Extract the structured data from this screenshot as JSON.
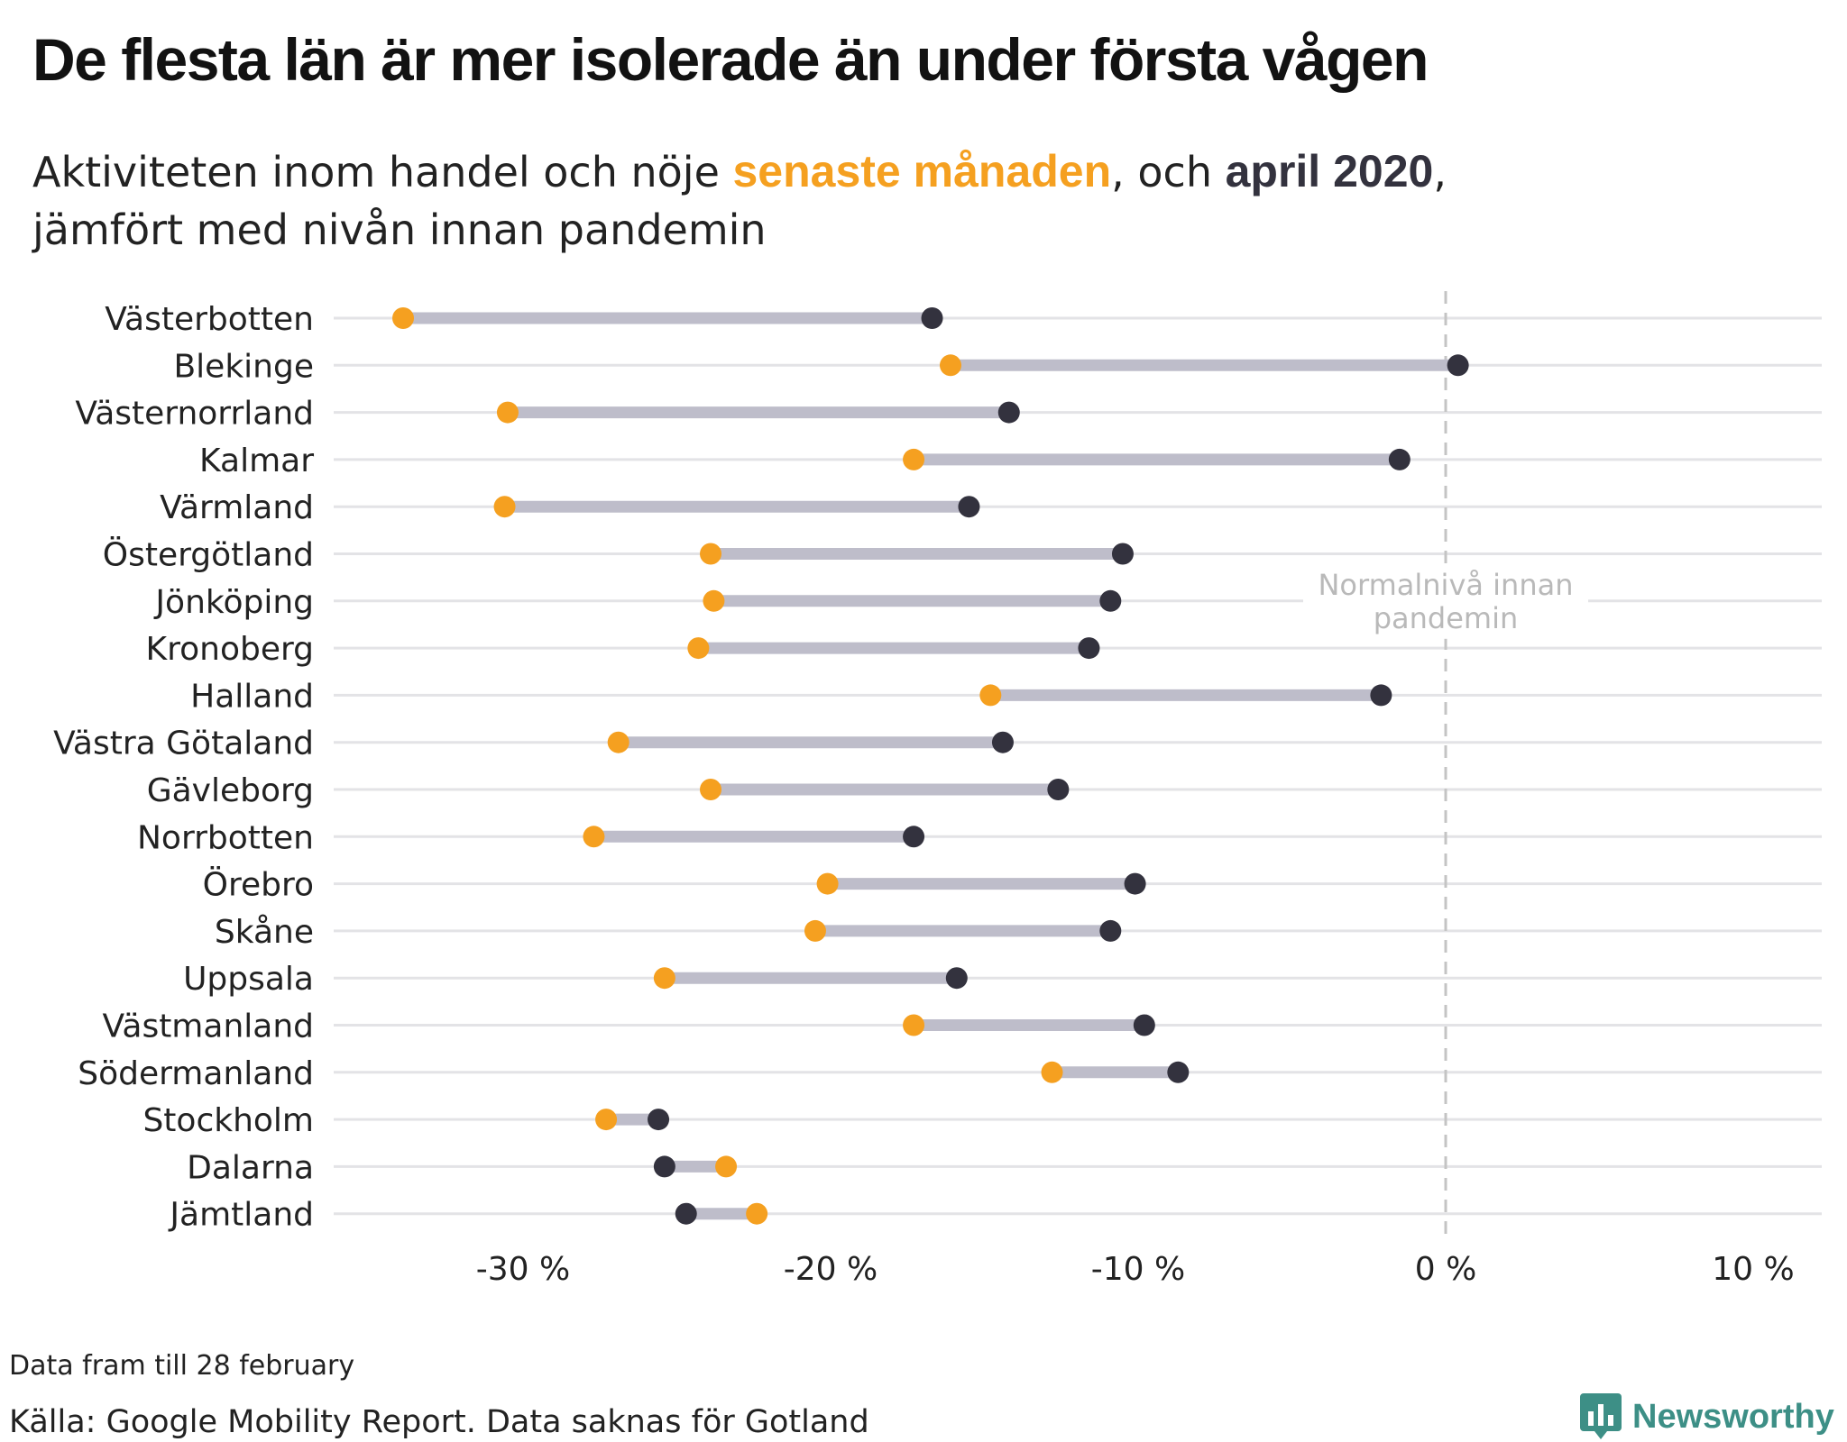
{
  "title": "De flesta län är mer isolerade än under första vågen",
  "subtitle": {
    "part1": "Aktiviteten inom handel och nöje ",
    "highlight_recent": "senaste månaden",
    "part2": ", och ",
    "highlight_april": "april 2020",
    "part3": ",",
    "line2": "jämfört med nivån innan pandemin"
  },
  "chart_data": {
    "type": "dumbbell",
    "xlim": [
      -36,
      12
    ],
    "xticks": [
      {
        "value": -30,
        "label": "-30 %"
      },
      {
        "value": -20,
        "label": "-20 %"
      },
      {
        "value": -10,
        "label": "-10 %"
      },
      {
        "value": 0,
        "label": "0 %"
      },
      {
        "value": 10,
        "label": "10 %"
      }
    ],
    "reference_line": {
      "value": 0,
      "label_line1": "Normalnivå innan",
      "label_line2": "pandemin"
    },
    "grid": true,
    "series": [
      {
        "key": "recent",
        "name": "senaste månaden",
        "color": "#f5a020"
      },
      {
        "key": "april",
        "name": "april 2020",
        "color": "#33323e"
      }
    ],
    "connector_color": "#bebdca",
    "categories": [
      "Västerbotten",
      "Blekinge",
      "Västernorrland",
      "Kalmar",
      "Värmland",
      "Östergötland",
      "Jönköping",
      "Kronoberg",
      "Halland",
      "Västra Götaland",
      "Gävleborg",
      "Norrbotten",
      "Örebro",
      "Skåne",
      "Uppsala",
      "Västmanland",
      "Södermanland",
      "Stockholm",
      "Dalarna",
      "Jämtland"
    ],
    "recent": [
      -33.9,
      -16.1,
      -30.5,
      -17.3,
      -30.6,
      -23.9,
      -23.8,
      -24.3,
      -14.8,
      -26.9,
      -23.9,
      -27.7,
      -20.1,
      -20.5,
      -25.4,
      -17.3,
      -12.8,
      -27.3,
      -23.4,
      -22.4
    ],
    "april": [
      -16.7,
      0.4,
      -14.2,
      -1.5,
      -15.5,
      -10.5,
      -10.9,
      -11.6,
      -2.1,
      -14.4,
      -12.6,
      -17.3,
      -10.1,
      -10.9,
      -15.9,
      -9.8,
      -8.7,
      -25.6,
      -25.4,
      -24.7
    ]
  },
  "footnote": "Data fram till 28 february",
  "source": "Källa: Google Mobility Report. Data saknas för Gotland",
  "brand": "Newsworthy",
  "brand_icon": "newsworthy-logo-icon"
}
